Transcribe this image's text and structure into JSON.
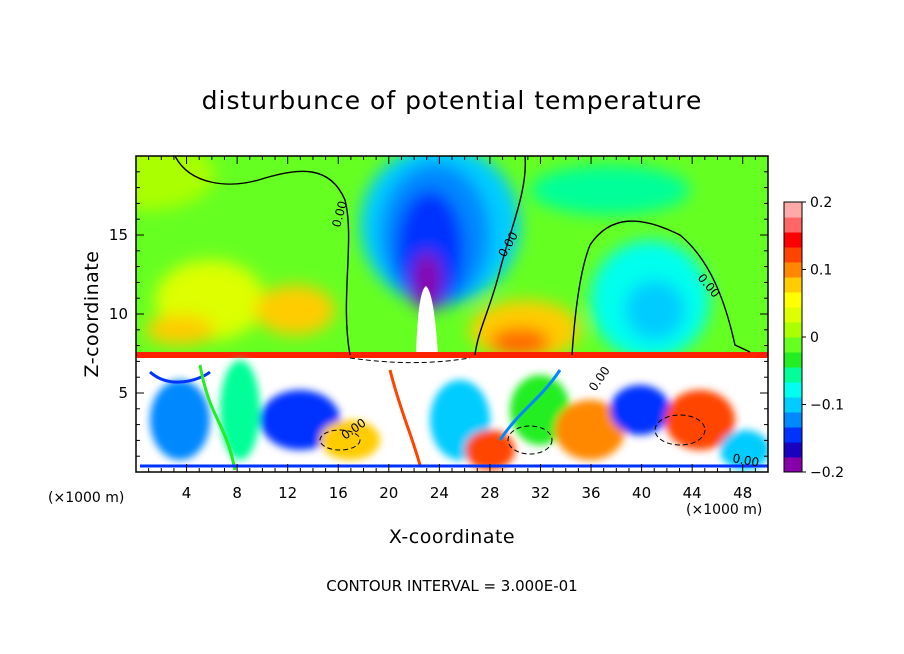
{
  "chart_data": {
    "type": "heatmap",
    "title": "disturbunce of potential temperature",
    "xlabel": "X-coordinate",
    "ylabel": "Z-coordinate",
    "x_unit": "(×1000 m)",
    "z_unit": "(×1000 m)",
    "xlim": [
      0,
      50
    ],
    "ylim": [
      0,
      20
    ],
    "x_ticks": [
      4,
      8,
      12,
      16,
      20,
      24,
      28,
      32,
      36,
      40,
      44,
      48
    ],
    "y_ticks": [
      5,
      10,
      15
    ],
    "colorbar": {
      "range": [
        -0.2,
        0.2
      ],
      "tick_values": [
        0.2,
        0.1,
        0,
        -0.1,
        -0.2
      ],
      "tick_labels": [
        "0.2",
        "0.1",
        "0",
        "−0.1",
        "−0.2"
      ],
      "colors": [
        "#8800aa",
        "#1a00bf",
        "#0033ff",
        "#0088ff",
        "#00ccff",
        "#00ffee",
        "#00ff99",
        "#22ee22",
        "#66ff22",
        "#aaff00",
        "#ddff00",
        "#ffff00",
        "#ffcc00",
        "#ff8800",
        "#ff4400",
        "#ff0000",
        "#ff6666",
        "#ffaaaa"
      ]
    },
    "contour_labels": [
      "0.00",
      "0.00",
      "0.00",
      "0.00",
      "0.00",
      "0.00"
    ],
    "contour_interval_text": "CONTOUR INTERVAL = 3.000E-01",
    "features": [
      {
        "name": "cold plume",
        "x": 23,
        "z": 14,
        "value": -0.2
      },
      {
        "name": "cold region right",
        "x": 42,
        "z": 11,
        "value": -0.09
      },
      {
        "name": "warm lobe left",
        "x": 12,
        "z": 11,
        "value": 0.11
      },
      {
        "name": "warm lobe right",
        "x": 31,
        "z": 9,
        "value": 0.13
      },
      {
        "name": "turbulent layer",
        "z_range": [
          0,
          7.2
        ],
        "amplitude": "beyond ±0.2"
      }
    ]
  }
}
